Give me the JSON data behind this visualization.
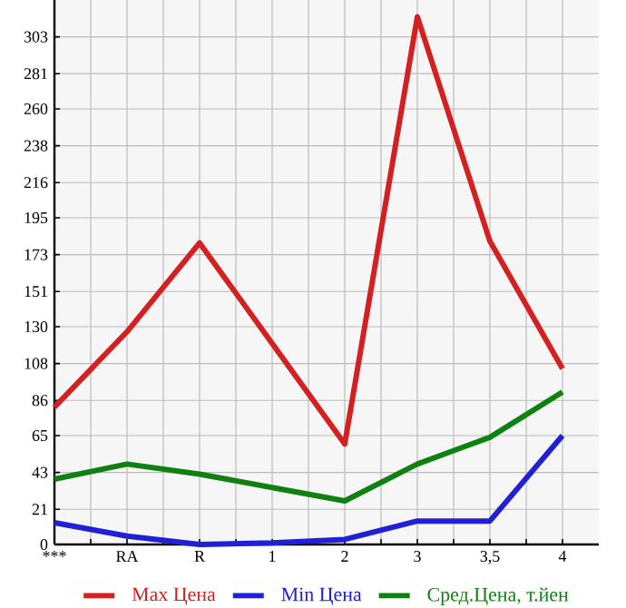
{
  "chart_data": {
    "type": "line",
    "categories": [
      "***",
      "RA",
      "R",
      "1",
      "2",
      "3",
      "3,5",
      "4"
    ],
    "series": [
      {
        "name": "Max Цена",
        "color": "#d42020",
        "values": [
          82,
          127,
          180,
          120,
          60,
          315,
          181,
          105
        ]
      },
      {
        "name": "Min Цена",
        "color": "#2020d4",
        "values": [
          13,
          5,
          0,
          1,
          3,
          14,
          14,
          65
        ]
      },
      {
        "name": "Сред.Цена, т.йен",
        "color": "#108010",
        "values": [
          39,
          48,
          42,
          34,
          26,
          48,
          64,
          91
        ]
      }
    ],
    "ylim": [
      0,
      325
    ],
    "yticks": [
      0,
      21,
      43,
      65,
      86,
      108,
      130,
      151,
      173,
      195,
      216,
      238,
      260,
      281,
      303
    ],
    "grid": true,
    "legend": "bottom",
    "marker": "none",
    "line_style": "solid"
  }
}
